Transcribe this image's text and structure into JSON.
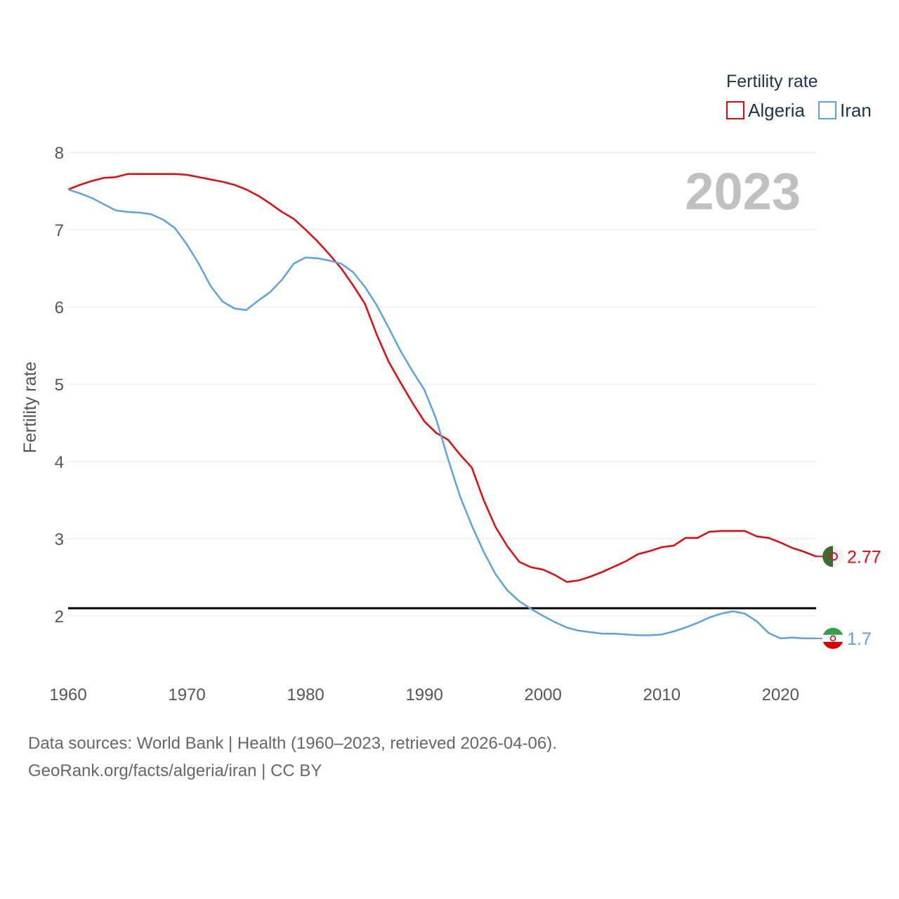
{
  "chart_data": {
    "type": "line",
    "title": "Fertility rate",
    "xlabel": "",
    "ylabel": "Fertility rate",
    "xlim": [
      1960,
      2023
    ],
    "ylim": [
      1.3,
      8.2
    ],
    "x_ticks": [
      1960,
      1970,
      1980,
      1990,
      2000,
      2010,
      2020
    ],
    "y_ticks": [
      2,
      3,
      4,
      5,
      6,
      7,
      8
    ],
    "reference_line": 2.1,
    "year_label": "2023",
    "legend_title": "Fertility rate",
    "x": [
      1960,
      1961,
      1962,
      1963,
      1964,
      1965,
      1966,
      1967,
      1968,
      1969,
      1970,
      1971,
      1972,
      1973,
      1974,
      1975,
      1976,
      1977,
      1978,
      1979,
      1980,
      1981,
      1982,
      1983,
      1984,
      1985,
      1986,
      1987,
      1988,
      1989,
      1990,
      1991,
      1992,
      1993,
      1994,
      1995,
      1996,
      1997,
      1998,
      1999,
      2000,
      2001,
      2002,
      2003,
      2004,
      2005,
      2006,
      2007,
      2008,
      2009,
      2010,
      2011,
      2012,
      2013,
      2014,
      2015,
      2016,
      2017,
      2018,
      2019,
      2020,
      2021,
      2022,
      2023
    ],
    "series": [
      {
        "name": "Algeria",
        "color": "#e8060b",
        "end_label": "2.77",
        "values": [
          7.52,
          7.58,
          7.63,
          7.67,
          7.68,
          7.72,
          7.72,
          7.72,
          7.72,
          7.72,
          7.71,
          7.68,
          7.65,
          7.62,
          7.58,
          7.52,
          7.44,
          7.34,
          7.23,
          7.14,
          7.0,
          6.85,
          6.68,
          6.5,
          6.28,
          6.04,
          5.64,
          5.29,
          5.02,
          4.76,
          4.52,
          4.37,
          4.28,
          4.09,
          3.92,
          3.5,
          3.15,
          2.9,
          2.7,
          2.63,
          2.6,
          2.53,
          2.44,
          2.46,
          2.51,
          2.57,
          2.64,
          2.71,
          2.8,
          2.84,
          2.89,
          2.91,
          3.01,
          3.01,
          3.09,
          3.1,
          3.1,
          3.1,
          3.03,
          3.01,
          2.95,
          2.88,
          2.83,
          2.77
        ]
      },
      {
        "name": "Iran",
        "color": "#5aa3e2",
        "end_label": "1.7",
        "values": [
          7.52,
          7.47,
          7.41,
          7.33,
          7.25,
          7.23,
          7.22,
          7.2,
          7.13,
          7.02,
          6.81,
          6.56,
          6.27,
          6.07,
          5.98,
          5.96,
          6.08,
          6.19,
          6.35,
          6.56,
          6.64,
          6.63,
          6.6,
          6.56,
          6.45,
          6.26,
          6.02,
          5.73,
          5.43,
          5.17,
          4.93,
          4.55,
          4.03,
          3.55,
          3.17,
          2.83,
          2.54,
          2.33,
          2.19,
          2.09,
          2.0,
          1.92,
          1.85,
          1.81,
          1.79,
          1.77,
          1.77,
          1.76,
          1.75,
          1.75,
          1.76,
          1.8,
          1.85,
          1.91,
          1.98,
          2.03,
          2.06,
          2.03,
          1.93,
          1.78,
          1.71,
          1.72,
          1.71,
          1.71
        ]
      }
    ]
  },
  "footer": {
    "line1": "Data sources: World Bank | Health (1960–2023, retrieved 2026-04-06).",
    "line2": "GeoRank.org/facts/algeria/iran | CC BY"
  },
  "flags": {
    "algeria": {
      "green": "#3e6b2e",
      "white": "#f2f2f2",
      "red": "#d21034"
    },
    "iran": {
      "green": "#2fa24a",
      "white": "#ffffff",
      "red": "#da0000"
    }
  }
}
